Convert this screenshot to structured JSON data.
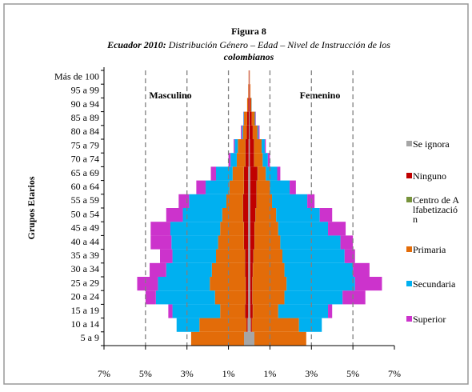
{
  "chart_data": {
    "type": "pyramid",
    "title": "Figura 8",
    "subtitle_lead": "Ecuador 2010:",
    "subtitle": "Distribución Género – Edad – Nivel de Instrucción de los",
    "subtitle_end": "colombianos",
    "y_label": "Grupos Etarios",
    "left_label": "Masculino",
    "right_label": "Femenino",
    "categories": [
      "5 a 9",
      "10 a 14",
      "15 a 19",
      "20 a 24",
      "25 a 29",
      "30 a 34",
      "35 a 39",
      "40 a 44",
      "45 a 49",
      "50 a 54",
      "55 a 59",
      "60 a 64",
      "65 a 69",
      "70 a 74",
      "75 a 79",
      "80 a 84",
      "85 a 89",
      "90 a 94",
      "95 a 99",
      "Más de 100"
    ],
    "xlim": [
      -7,
      7
    ],
    "xticks": [
      {
        "value": -7,
        "label": "7%"
      },
      {
        "value": -5,
        "label": "5%"
      },
      {
        "value": -3,
        "label": "3%"
      },
      {
        "value": -1,
        "label": "1%"
      },
      {
        "value": 1,
        "label": "1%"
      },
      {
        "value": 3,
        "label": "3%"
      },
      {
        "value": 5,
        "label": "5%"
      },
      {
        "value": 7,
        "label": "7%"
      }
    ],
    "grid": true,
    "series": [
      {
        "name": "Se ignora",
        "color": "#a6a6a6",
        "male": [
          0.25,
          0.08,
          0.05,
          0.05,
          0.05,
          0.05,
          0.05,
          0.05,
          0.05,
          0.05,
          0.05,
          0.05,
          0.05,
          0.03,
          0.03,
          0.02,
          0.02,
          0.01,
          0.01,
          0.01
        ],
        "female": [
          0.25,
          0.08,
          0.05,
          0.05,
          0.05,
          0.05,
          0.05,
          0.05,
          0.05,
          0.05,
          0.05,
          0.05,
          0.05,
          0.03,
          0.03,
          0.02,
          0.02,
          0.01,
          0.01,
          0.01
        ]
      },
      {
        "name": "Ninguno",
        "color": "#c00000",
        "male": [
          0,
          0.05,
          0.15,
          0.12,
          0.12,
          0.15,
          0.15,
          0.2,
          0.2,
          0.25,
          0.25,
          0.2,
          0.2,
          0.15,
          0.15,
          0.1,
          0.08,
          0.04,
          0.02,
          0.01
        ],
        "female": [
          0,
          0.05,
          0.12,
          0.1,
          0.1,
          0.12,
          0.15,
          0.2,
          0.2,
          0.25,
          0.3,
          0.3,
          0.35,
          0.2,
          0.2,
          0.15,
          0.1,
          0.05,
          0.02,
          0.01
        ]
      },
      {
        "name": "Centro de Alfabetización",
        "color": "#77933c",
        "male": [
          0,
          0,
          0.01,
          0.01,
          0.01,
          0.01,
          0.01,
          0.01,
          0.01,
          0.01,
          0.01,
          0.01,
          0.01,
          0.01,
          0.01,
          0,
          0,
          0,
          0,
          0
        ],
        "female": [
          0,
          0,
          0.01,
          0.01,
          0.01,
          0.01,
          0.01,
          0.01,
          0.01,
          0.01,
          0.01,
          0.01,
          0.01,
          0.01,
          0.01,
          0,
          0,
          0,
          0,
          0
        ]
      },
      {
        "name": "Primaria",
        "color": "#e36c09",
        "male": [
          2.55,
          2.27,
          1.19,
          1.47,
          1.72,
          1.59,
          1.39,
          1.24,
          1.14,
          0.99,
          0.79,
          0.69,
          0.54,
          0.41,
          0.36,
          0.18,
          0.15,
          0.05,
          0.02,
          0.01
        ],
        "female": [
          2.5,
          2.27,
          1.22,
          1.54,
          1.64,
          1.52,
          1.39,
          1.24,
          1.14,
          0.99,
          0.74,
          0.64,
          0.39,
          0.41,
          0.36,
          0.23,
          0.15,
          0.05,
          0.03,
          0.01
        ]
      },
      {
        "name": "Secundaria",
        "color": "#00b0f0",
        "male": [
          0,
          1.1,
          2.3,
          2.85,
          2.5,
          2.2,
          2.1,
          2.25,
          2.4,
          1.9,
          1.8,
          1.15,
          0.8,
          0.3,
          0.15,
          0.05,
          0.02,
          0,
          0,
          0
        ],
        "female": [
          0,
          1.1,
          2.4,
          2.8,
          3.3,
          3.3,
          3.0,
          2.9,
          2.4,
          2.1,
          1.7,
          0.95,
          0.55,
          0.25,
          0.15,
          0.05,
          0.03,
          0.01,
          0,
          0
        ]
      },
      {
        "name": "Superior",
        "color": "#cc33cc",
        "male": [
          0,
          0,
          0.2,
          0.5,
          1.0,
          0.8,
          0.6,
          1.0,
          0.95,
          0.8,
          0.5,
          0.45,
          0.25,
          0.1,
          0.05,
          0.05,
          0.01,
          0,
          0,
          0
        ],
        "female": [
          0,
          0,
          0.2,
          1.1,
          1.3,
          0.8,
          0.5,
          0.6,
          0.85,
          0.6,
          0.35,
          0.3,
          0.15,
          0.1,
          0.05,
          0.05,
          0.02,
          0,
          0,
          0
        ]
      }
    ]
  }
}
